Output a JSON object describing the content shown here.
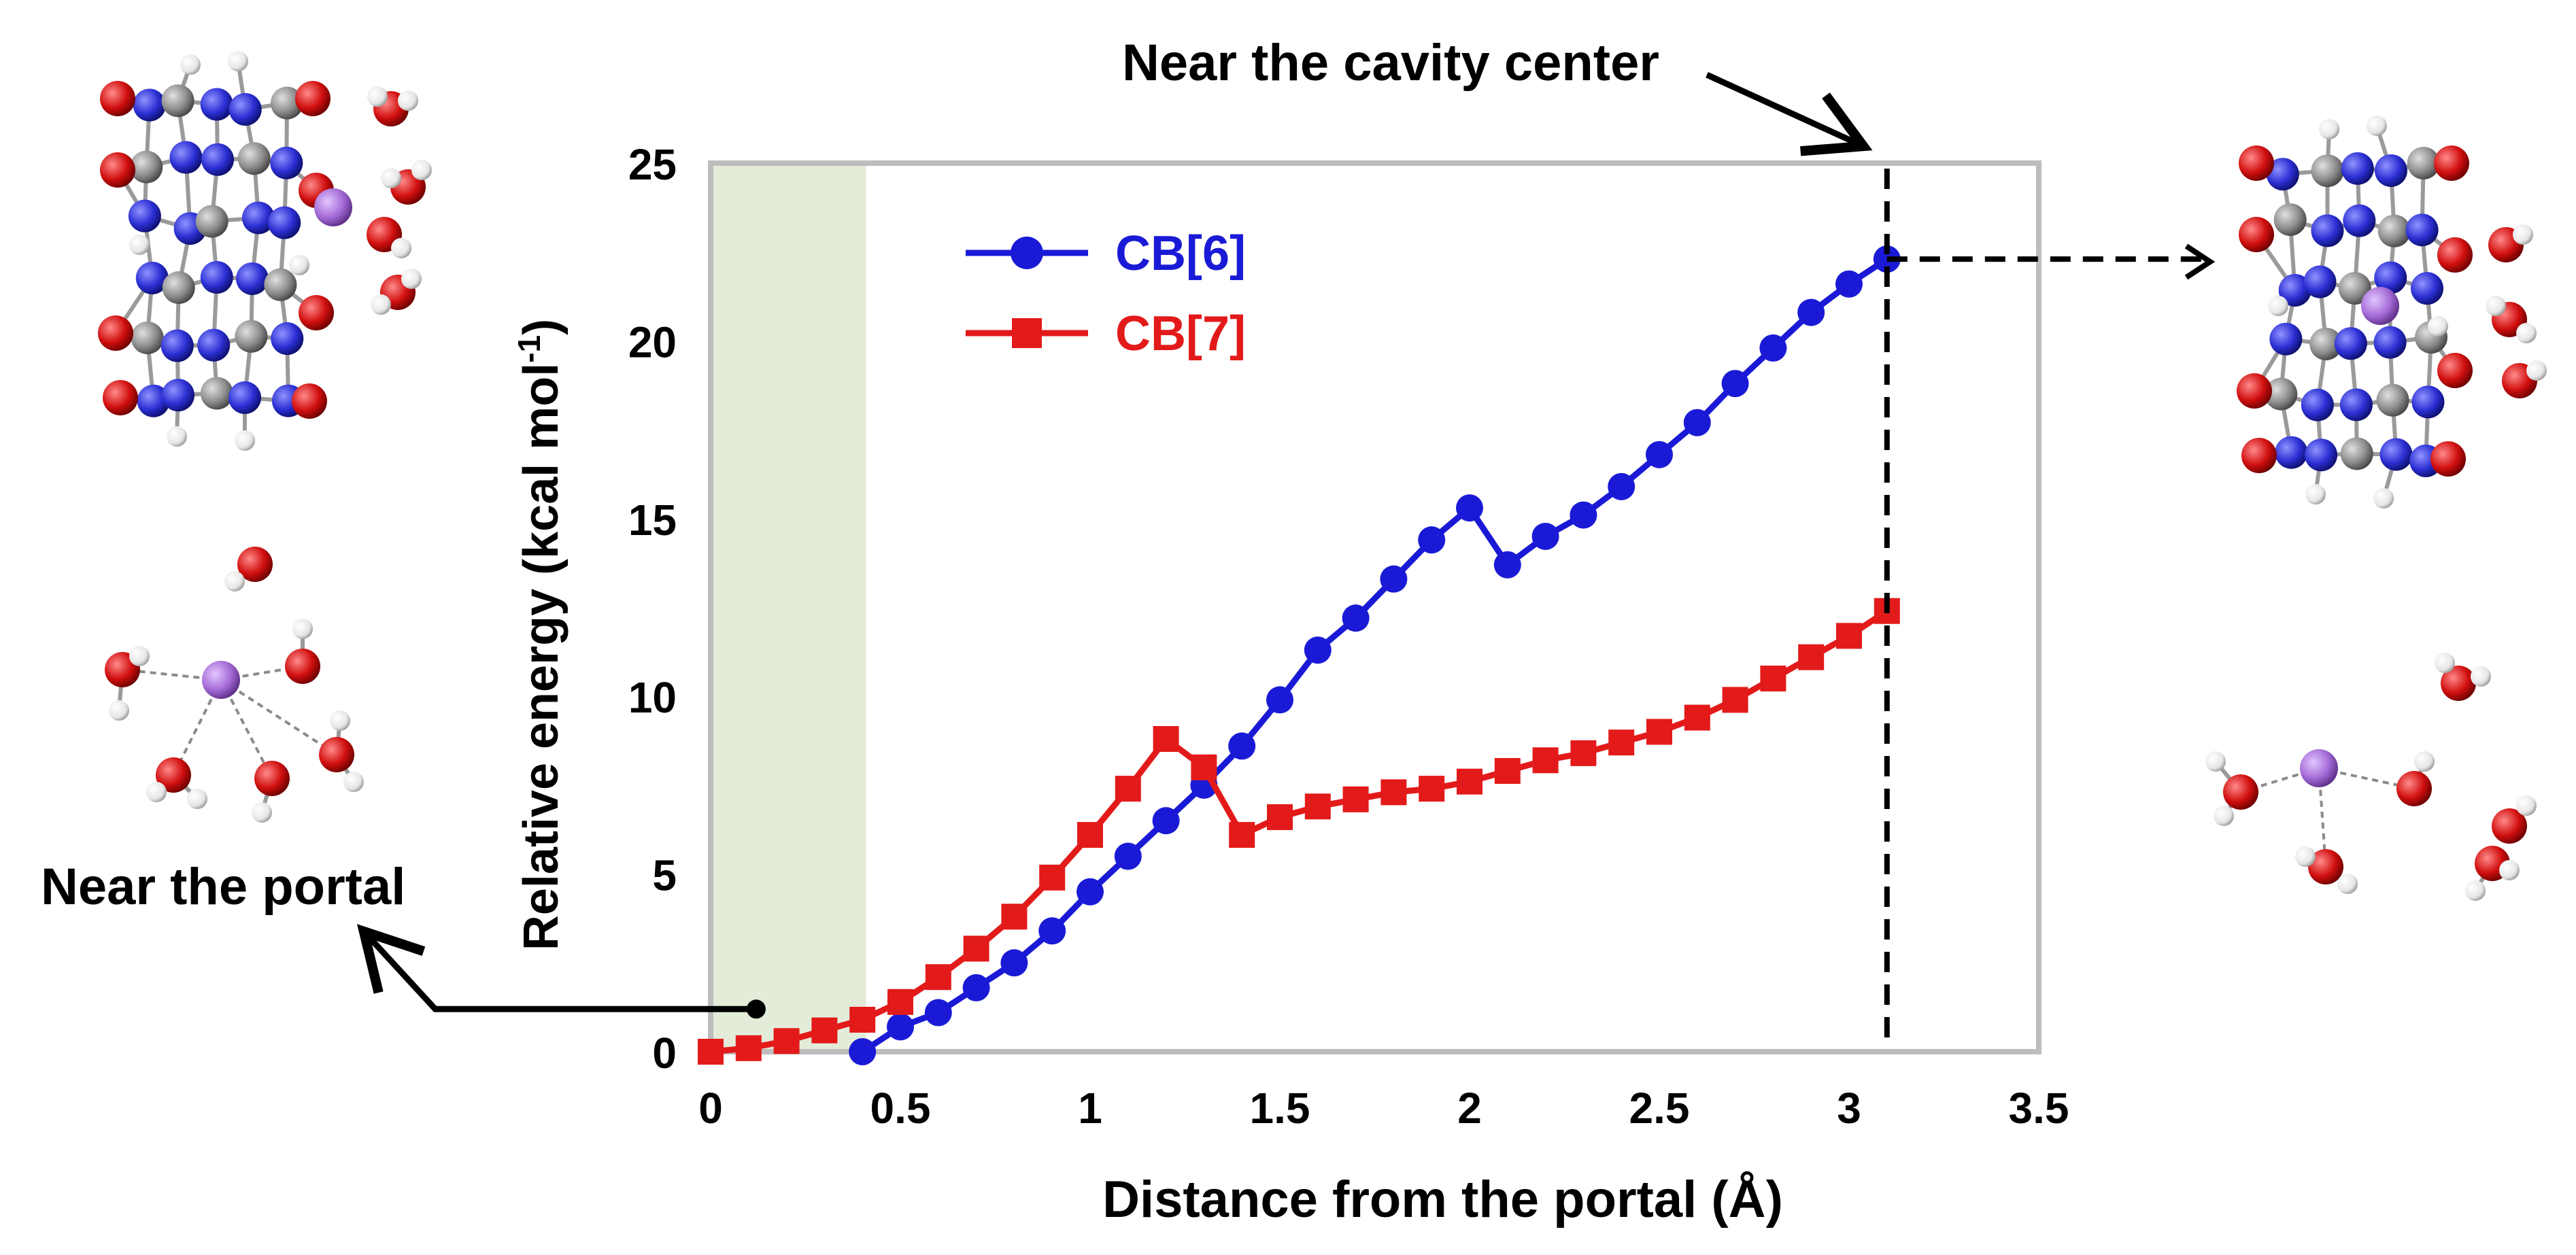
{
  "chart_data": {
    "type": "line",
    "title": "",
    "xlabel": "Distance from the portal (Å)",
    "ylabel_main": "Relative energy (kcal mol",
    "ylabel_sup": "-1",
    "ylabel_close": ")",
    "xlim": [
      0,
      3.5
    ],
    "ylim": [
      0,
      25
    ],
    "xticks": [
      "0",
      "0.5",
      "1",
      "1.5",
      "2",
      "2.5",
      "3",
      "3.5"
    ],
    "yticks": [
      "0",
      "5",
      "10",
      "15",
      "20",
      "25"
    ],
    "grid": false,
    "legend_position": "upper-left inside plot",
    "shaded_region": {
      "x_from": 0,
      "x_to": 0.41,
      "color": "#e3ecd9"
    },
    "series": [
      {
        "name": "CB[6]",
        "color": "#1a1ad6",
        "marker": "circle",
        "x": [
          0.4,
          0.5,
          0.6,
          0.7,
          0.8,
          0.9,
          1.0,
          1.1,
          1.2,
          1.3,
          1.4,
          1.5,
          1.6,
          1.7,
          1.8,
          1.9,
          2.0,
          2.1,
          2.2,
          2.3,
          2.4,
          2.5,
          2.6,
          2.7,
          2.8,
          2.9,
          3.0,
          3.1
        ],
        "values": [
          0.0,
          0.7,
          1.1,
          1.8,
          2.5,
          3.4,
          4.5,
          5.5,
          6.5,
          7.5,
          8.6,
          9.9,
          11.3,
          12.2,
          13.3,
          14.4,
          15.3,
          13.7,
          14.5,
          15.1,
          15.9,
          16.8,
          17.7,
          18.8,
          19.8,
          20.8,
          21.6,
          22.3
        ]
      },
      {
        "name": "CB[7]",
        "color": "#e31a1a",
        "marker": "square",
        "x": [
          0.0,
          0.1,
          0.2,
          0.3,
          0.4,
          0.5,
          0.6,
          0.7,
          0.8,
          0.9,
          1.0,
          1.1,
          1.2,
          1.3,
          1.4,
          1.5,
          1.6,
          1.7,
          1.8,
          1.9,
          2.0,
          2.1,
          2.2,
          2.3,
          2.4,
          2.5,
          2.6,
          2.7,
          2.8,
          2.9,
          3.0,
          3.1
        ],
        "values": [
          0.0,
          0.1,
          0.3,
          0.6,
          0.9,
          1.4,
          2.1,
          2.9,
          3.8,
          4.9,
          6.1,
          7.4,
          8.8,
          8.0,
          6.1,
          6.6,
          6.9,
          7.1,
          7.3,
          7.4,
          7.6,
          7.9,
          8.2,
          8.4,
          8.7,
          9.0,
          9.4,
          9.9,
          10.5,
          11.1,
          11.7,
          12.4
        ]
      }
    ],
    "annotations": {
      "cavity_label": "Near the cavity center",
      "portal_label": "Near the portal",
      "cavity_x": 3.1,
      "cavity_y": 22.3,
      "portal_point": {
        "x": 0.12,
        "y": 1.2
      }
    }
  },
  "molecules": {
    "top_left": "CB[6] host with guest and water cluster, portal position",
    "bottom_left": "Hydrated guest ion cluster, portal position",
    "top_right": "CB[6] host with guest, cavity-center position",
    "bottom_right": "Hydrated guest ion cluster, cavity-center position"
  },
  "atom_colors": {
    "carbon": "#8d8d8d",
    "nitrogen": "#2b2fd3",
    "oxygen": "#d10f0f",
    "hydrogen": "#e6e6e6",
    "guest": "#a46ad6"
  }
}
